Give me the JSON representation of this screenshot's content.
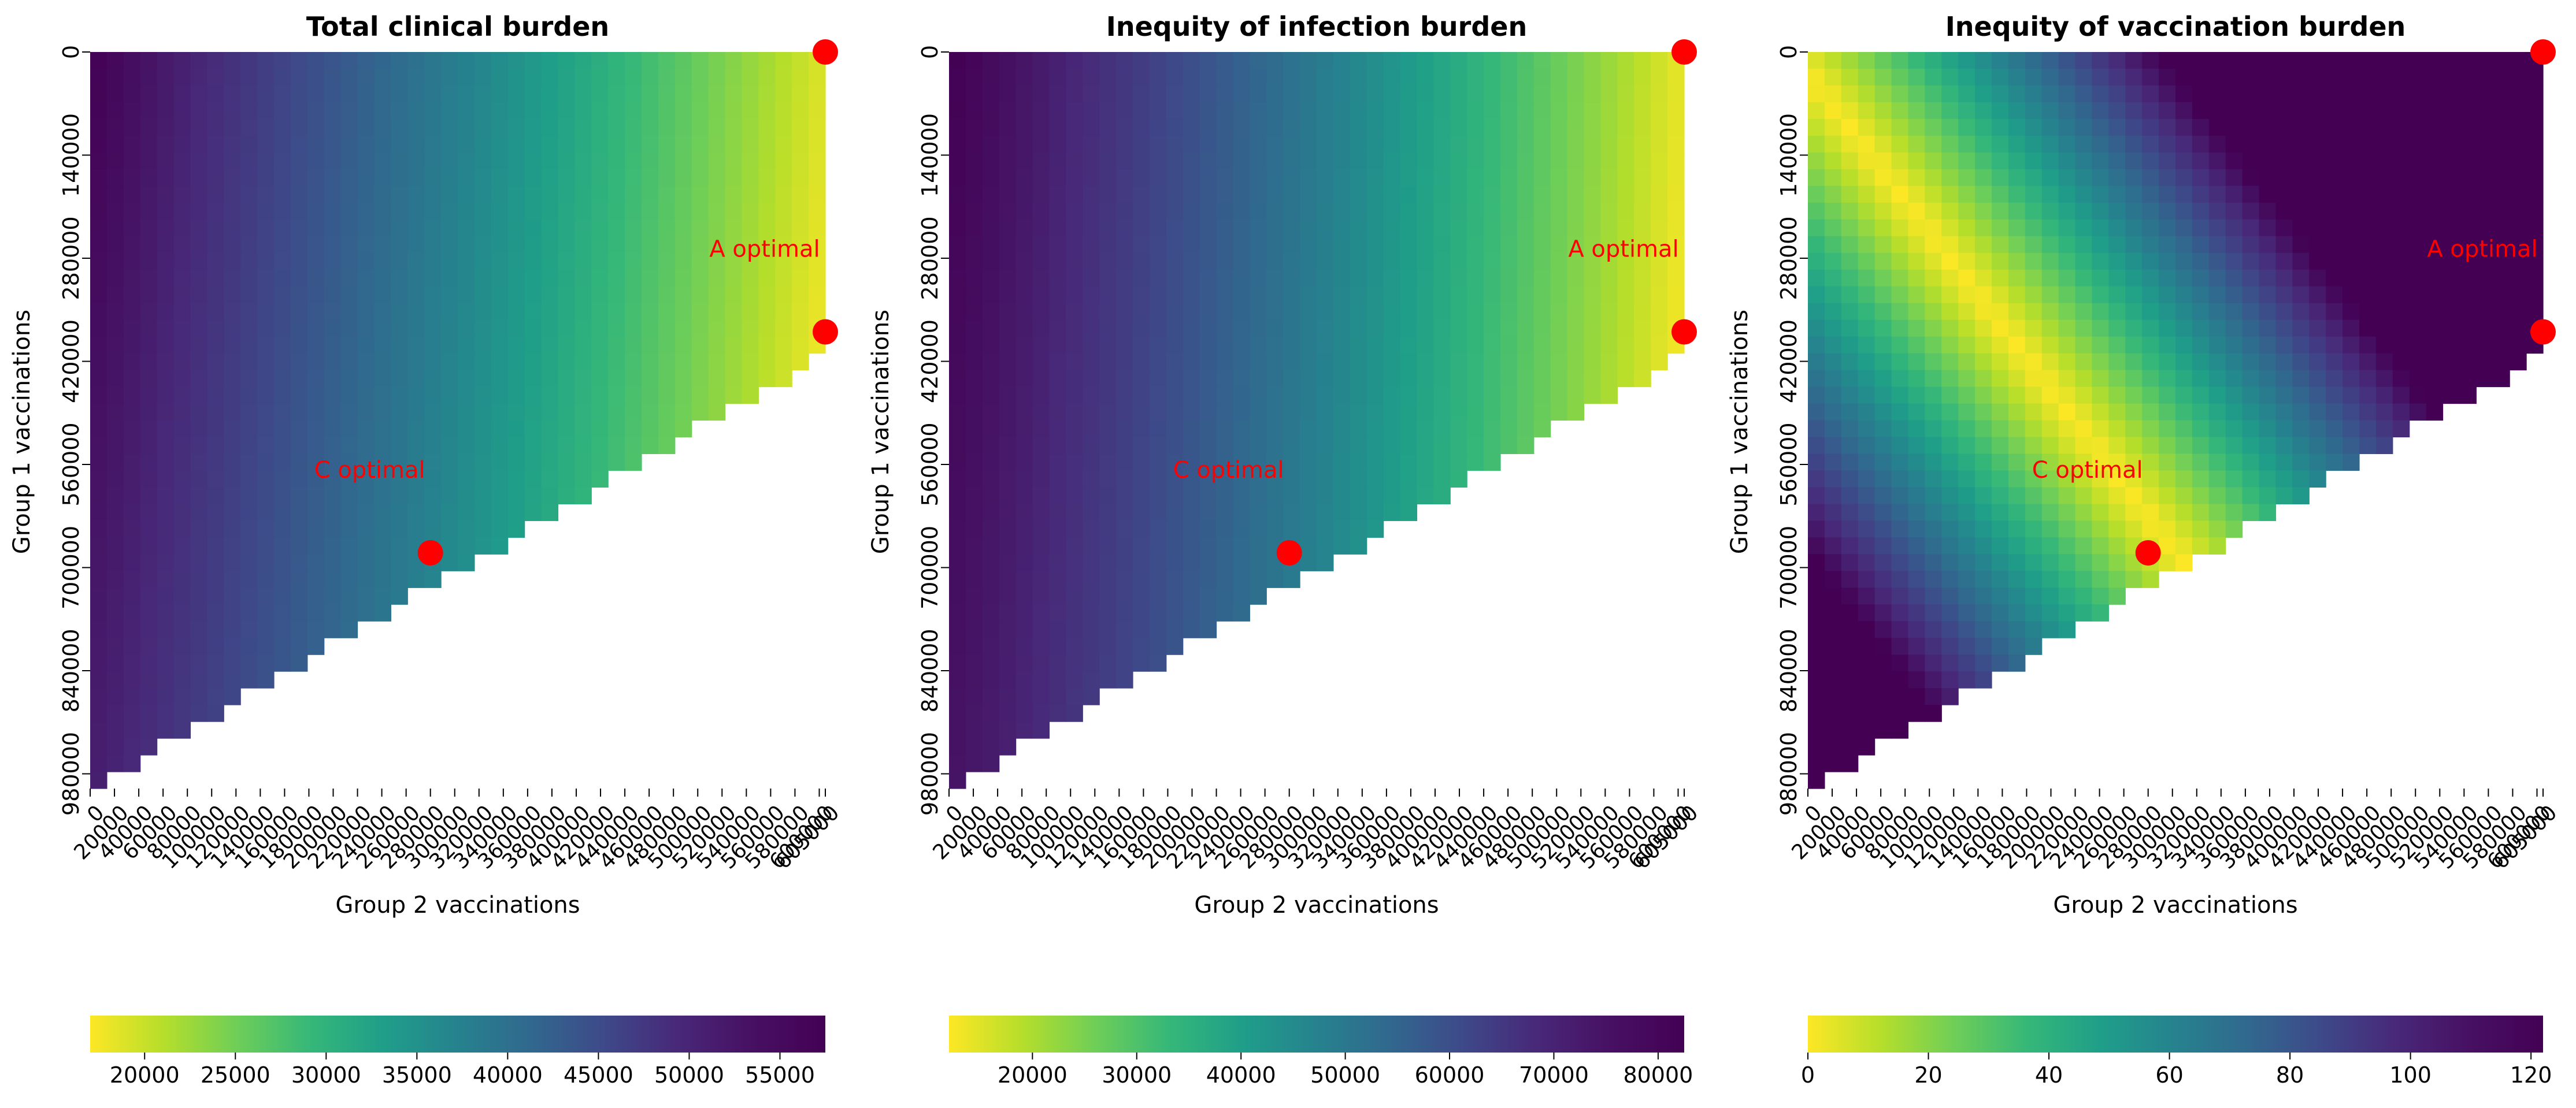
{
  "figure": {
    "panels": [
      {
        "title": "Total clinical burden",
        "x_axis_label": "Group 2 vaccinations",
        "y_axis_label": "Group 1 vaccinations",
        "colorbar_ticks": [
          "20000",
          "25000",
          "30000",
          "35000",
          "40000",
          "45000",
          "50000",
          "55000"
        ]
      },
      {
        "title": "Inequity of infection burden",
        "x_axis_label": "Group 2 vaccinations",
        "y_axis_label": "Group 1 vaccinations",
        "colorbar_ticks": [
          "20000",
          "30000",
          "40000",
          "50000",
          "60000",
          "70000",
          "80000"
        ]
      },
      {
        "title": "Inequity of vaccination burden",
        "x_axis_label": "Group 2 vaccinations",
        "y_axis_label": "Group 1 vaccinations",
        "colorbar_ticks": [
          "0",
          "20",
          "40",
          "60",
          "80",
          "100",
          "120"
        ]
      }
    ]
  },
  "chart_data": [
    {
      "type": "heatmap",
      "title": "Total clinical burden",
      "xlabel": "Group 2 vaccinations",
      "ylabel": "Group 1 vaccinations",
      "x_ticks": [
        0,
        20000,
        40000,
        60000,
        80000,
        100000,
        120000,
        140000,
        160000,
        180000,
        200000,
        220000,
        240000,
        260000,
        280000,
        300000,
        320000,
        340000,
        360000,
        380000,
        400000,
        420000,
        440000,
        460000,
        480000,
        500000,
        520000,
        540000,
        560000,
        580000,
        600000,
        605000
      ],
      "y_ticks": [
        0,
        140000,
        280000,
        420000,
        560000,
        700000,
        840000,
        980000
      ],
      "feasible_region": "group1 + group2 vaccinations <= ~1,000,000; cells beyond are blank",
      "colormap": "viridis_r",
      "colorbar": {
        "min": 17000,
        "max": 57500,
        "ticks": [
          20000,
          25000,
          30000,
          35000,
          40000,
          45000,
          50000,
          55000
        ],
        "orientation": "horizontal"
      },
      "value_trend": "burden decreases as Group 2 vaccinations increase (dark/high at x=0, yellow/low at x=605000)",
      "markers": [
        {
          "x": 605000,
          "y": 0,
          "label": ""
        },
        {
          "x": 605000,
          "y": 380000,
          "label": "A optimal"
        },
        {
          "x": 280000,
          "y": 680000,
          "label": "C optimal"
        }
      ]
    },
    {
      "type": "heatmap",
      "title": "Inequity of infection burden",
      "xlabel": "Group 2 vaccinations",
      "ylabel": "Group 1 vaccinations",
      "x_ticks": [
        0,
        20000,
        40000,
        60000,
        80000,
        100000,
        120000,
        140000,
        160000,
        180000,
        200000,
        220000,
        240000,
        260000,
        280000,
        300000,
        320000,
        340000,
        360000,
        380000,
        400000,
        420000,
        440000,
        460000,
        480000,
        500000,
        520000,
        540000,
        560000,
        580000,
        600000,
        605000
      ],
      "y_ticks": [
        0,
        140000,
        280000,
        420000,
        560000,
        700000,
        840000,
        980000
      ],
      "colormap": "viridis_r",
      "colorbar": {
        "min": 12000,
        "max": 82500,
        "ticks": [
          20000,
          30000,
          40000,
          50000,
          60000,
          70000,
          80000
        ],
        "orientation": "horizontal"
      },
      "value_trend": "inequity decreases as Group 2 vaccinations increase",
      "markers": [
        {
          "x": 605000,
          "y": 0,
          "label": ""
        },
        {
          "x": 605000,
          "y": 380000,
          "label": "A optimal"
        },
        {
          "x": 280000,
          "y": 680000,
          "label": "C optimal"
        }
      ]
    },
    {
      "type": "heatmap",
      "title": "Inequity of vaccination burden",
      "xlabel": "Group 2 vaccinations",
      "ylabel": "Group 1 vaccinations",
      "x_ticks": [
        0,
        20000,
        40000,
        60000,
        80000,
        100000,
        120000,
        140000,
        160000,
        180000,
        200000,
        220000,
        240000,
        260000,
        280000,
        300000,
        320000,
        340000,
        360000,
        380000,
        400000,
        420000,
        440000,
        460000,
        480000,
        500000,
        520000,
        540000,
        560000,
        580000,
        600000,
        605000
      ],
      "y_ticks": [
        0,
        140000,
        280000,
        420000,
        560000,
        700000,
        840000,
        980000
      ],
      "colormap": "viridis_r",
      "colorbar": {
        "min": 0,
        "max": 122,
        "ticks": [
          0,
          20,
          40,
          60,
          80,
          100,
          120
        ],
        "orientation": "horizontal"
      },
      "value_trend": "near 0 along diagonal band where group vaccination shares match; rises toward corners",
      "markers": [
        {
          "x": 605000,
          "y": 0,
          "label": ""
        },
        {
          "x": 605000,
          "y": 380000,
          "label": "A optimal"
        },
        {
          "x": 280000,
          "y": 680000,
          "label": "C optimal"
        }
      ]
    }
  ]
}
